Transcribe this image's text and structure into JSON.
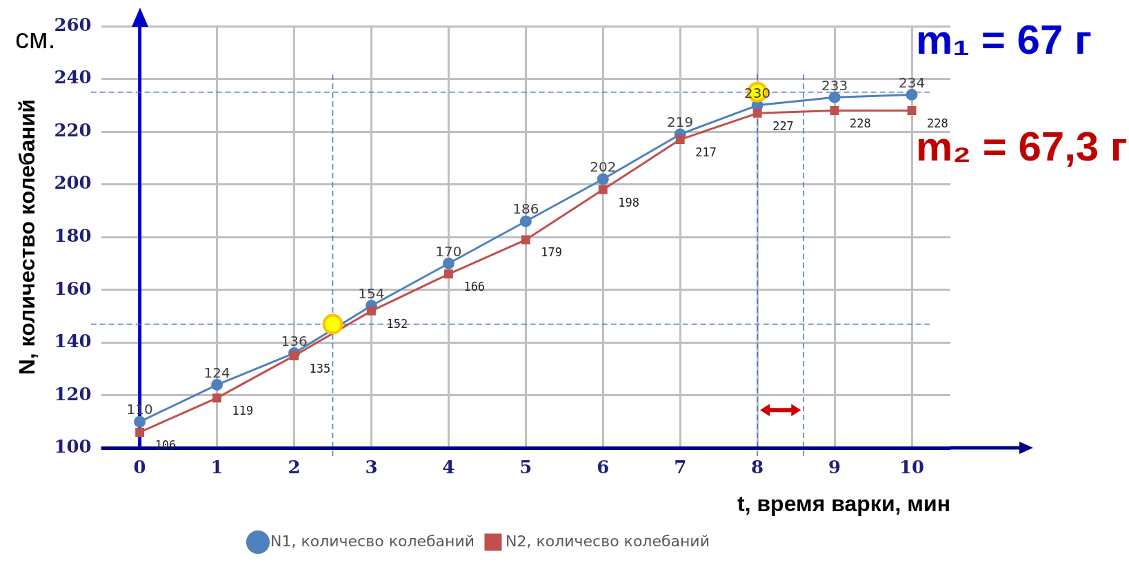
{
  "chart_data": {
    "type": "line",
    "xlabel": "t, время варки, мин",
    "ylabel": "N, количество колебаний",
    "x": [
      0,
      1,
      2,
      3,
      4,
      5,
      6,
      7,
      8,
      9,
      10
    ],
    "xlim": [
      -0.5,
      10.5
    ],
    "xticks": [
      0,
      1,
      2,
      3,
      4,
      5,
      6,
      7,
      8,
      9,
      10
    ],
    "ylim": [
      100,
      260
    ],
    "yticks": [
      100,
      120,
      140,
      160,
      180,
      200,
      220,
      240,
      260
    ],
    "series": [
      {
        "name": "N1, количесво колебаний",
        "color": "#4f81bd",
        "marker": "circle",
        "values": [
          110,
          124,
          136,
          154,
          170,
          186,
          202,
          219,
          230,
          233,
          234
        ],
        "value_labels": [
          "110",
          "124",
          "136",
          "154",
          "170",
          "186",
          "202",
          "219",
          "230",
          "233",
          "234"
        ]
      },
      {
        "name": "N2, количесво колебаний",
        "color": "#c0504d",
        "marker": "square",
        "values": [
          106,
          119,
          135,
          152,
          166,
          179,
          198,
          217,
          227,
          228,
          228
        ],
        "value_labels": [
          "106",
          "119",
          "135",
          "152",
          "166",
          "179",
          "198",
          "217",
          "227",
          "228",
          "228"
        ]
      },
      {
        "type": "scatter",
        "color": "#ffff00",
        "marker": "circle",
        "x": [
          2.5,
          8
        ],
        "values": [
          147,
          235
        ]
      }
    ],
    "ref_lines": [
      {
        "axis": "x",
        "value": 0,
        "color": "#0000cc",
        "line_style": "solid"
      },
      {
        "axis": "y",
        "value": 147,
        "color": "#4472c4",
        "line_style": "dashed"
      },
      {
        "axis": "y",
        "value": 235,
        "color": "#4472c4",
        "line_style": "dashed"
      },
      {
        "axis": "x",
        "value": 2.5,
        "color": "#4472c4",
        "line_style": "dashed"
      },
      {
        "axis": "x",
        "value": 8,
        "color": "#4472c4",
        "line_style": "dashed"
      },
      {
        "axis": "x",
        "value": 8.6,
        "color": "#4472c4",
        "line_style": "dashed"
      }
    ],
    "annotations": [
      "см.",
      "m₁ = 67 г",
      "m₂ = 67,3 г"
    ],
    "grid": true,
    "legend": "bottom"
  }
}
